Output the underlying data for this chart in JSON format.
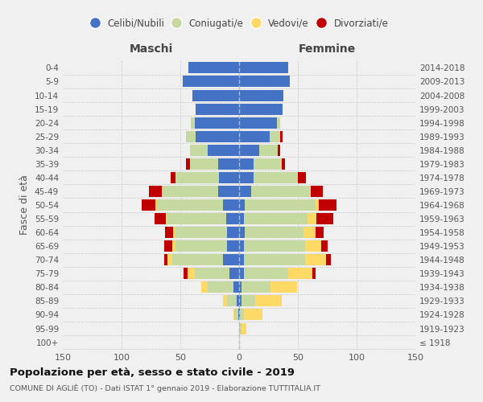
{
  "age_groups": [
    "100+",
    "95-99",
    "90-94",
    "85-89",
    "80-84",
    "75-79",
    "70-74",
    "65-69",
    "60-64",
    "55-59",
    "50-54",
    "45-49",
    "40-44",
    "35-39",
    "30-34",
    "25-29",
    "20-24",
    "15-19",
    "10-14",
    "5-9",
    "0-4"
  ],
  "birth_years": [
    "≤ 1918",
    "1919-1923",
    "1924-1928",
    "1929-1933",
    "1934-1938",
    "1939-1943",
    "1944-1948",
    "1949-1953",
    "1954-1958",
    "1959-1963",
    "1964-1968",
    "1969-1973",
    "1974-1978",
    "1979-1983",
    "1984-1988",
    "1989-1993",
    "1994-1998",
    "1999-2003",
    "2004-2008",
    "2009-2013",
    "2014-2018"
  ],
  "colors": {
    "celibe": "#4472c4",
    "coniugato": "#c5d9a0",
    "vedovo": "#ffd966",
    "divorziato": "#c00000"
  },
  "maschi": {
    "celibe": [
      0,
      0,
      1,
      2,
      5,
      8,
      14,
      10,
      10,
      11,
      14,
      18,
      17,
      18,
      27,
      37,
      38,
      37,
      40,
      48,
      43
    ],
    "coniugato": [
      0,
      0,
      3,
      8,
      22,
      30,
      43,
      44,
      44,
      50,
      56,
      48,
      37,
      24,
      15,
      8,
      3,
      0,
      0,
      0,
      0
    ],
    "vedovo": [
      0,
      0,
      1,
      4,
      5,
      6,
      4,
      3,
      2,
      1,
      1,
      0,
      0,
      0,
      0,
      0,
      0,
      0,
      0,
      0,
      0
    ],
    "divorziato": [
      0,
      0,
      0,
      0,
      0,
      3,
      3,
      7,
      7,
      10,
      12,
      11,
      4,
      3,
      0,
      0,
      0,
      0,
      0,
      0,
      0
    ]
  },
  "femmine": {
    "nubile": [
      0,
      0,
      1,
      2,
      2,
      4,
      4,
      4,
      5,
      4,
      5,
      10,
      12,
      12,
      17,
      26,
      32,
      37,
      38,
      43,
      42
    ],
    "coniugata": [
      0,
      2,
      3,
      12,
      25,
      38,
      52,
      52,
      50,
      54,
      60,
      50,
      38,
      24,
      16,
      9,
      3,
      0,
      0,
      0,
      0
    ],
    "vedova": [
      1,
      4,
      16,
      22,
      22,
      20,
      18,
      14,
      10,
      8,
      3,
      1,
      0,
      0,
      0,
      0,
      0,
      0,
      0,
      0,
      0
    ],
    "divorziata": [
      0,
      0,
      0,
      0,
      0,
      3,
      4,
      5,
      7,
      14,
      15,
      10,
      7,
      3,
      2,
      2,
      0,
      0,
      0,
      0,
      0
    ]
  },
  "xlim": 150,
  "title": "Popolazione per età, sesso e stato civile - 2019",
  "subtitle": "COMUNE DI AGLIÈ (TO) - Dati ISTAT 1° gennaio 2019 - Elaborazione TUTTITALIA.IT",
  "ylabel_left": "Fasce di età",
  "xlabel_left": "Maschi",
  "xlabel_right": "Femmine",
  "bg_color": "#f0f0f0",
  "legend_labels": [
    "Celibi/Nubili",
    "Coniugati/e",
    "Vedovi/e",
    "Divorziati/e"
  ]
}
